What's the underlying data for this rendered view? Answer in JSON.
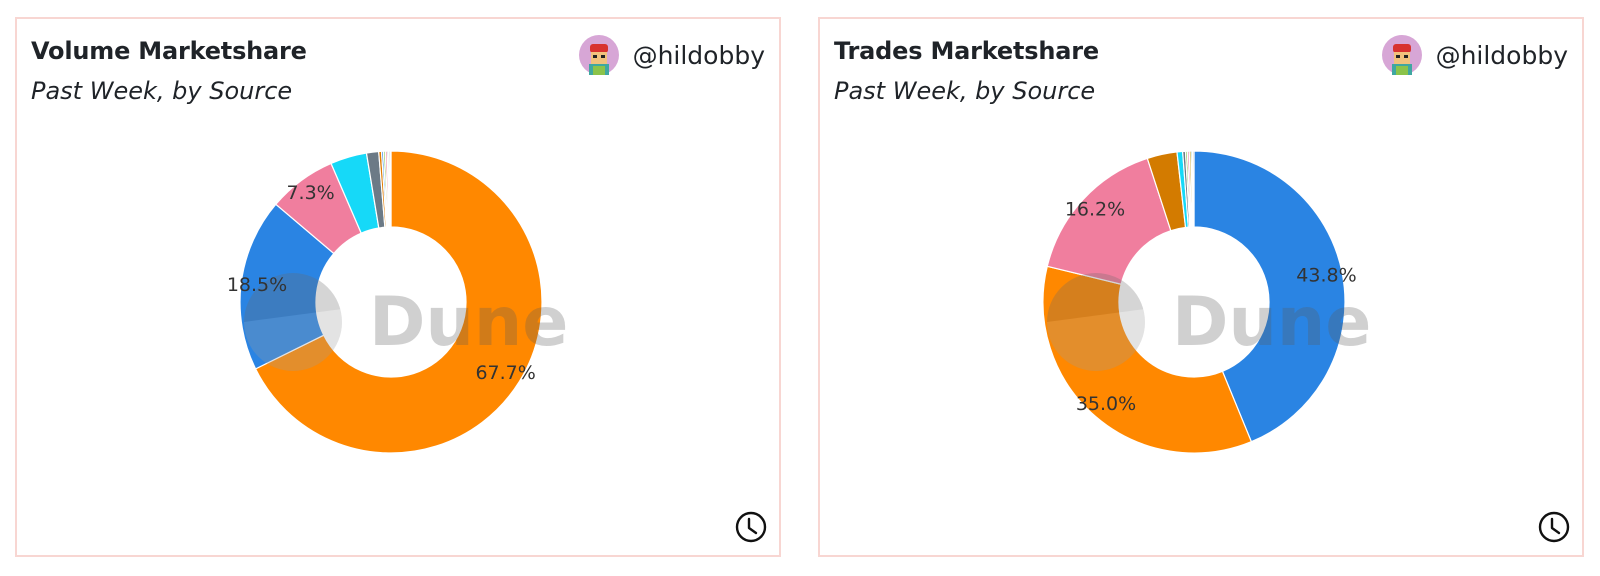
{
  "charts": [
    {
      "title": "Volume Marketshare",
      "subtitle": "Past Week, by Source",
      "author": "@hildobby",
      "watermark": "Dune",
      "icons": [
        "avatar-icon",
        "clock-icon"
      ]
    },
    {
      "title": "Trades Marketshare",
      "subtitle": "Past Week, by Source",
      "author": "@hildobby",
      "watermark": "Dune",
      "icons": [
        "avatar-icon",
        "clock-icon"
      ]
    }
  ],
  "chart_data": [
    {
      "type": "pie",
      "donut": true,
      "title": "Volume Marketshare",
      "subtitle": "Past Week, by Source",
      "slices": [
        {
          "value": 67.7,
          "label": "67.7%",
          "color": "#ff8800"
        },
        {
          "value": 18.5,
          "label": "18.5%",
          "color": "#2a84e3"
        },
        {
          "value": 7.3,
          "label": "7.3%",
          "color": "#f07e9e"
        },
        {
          "value": 3.9,
          "label": "",
          "color": "#16d9f8"
        },
        {
          "value": 1.3,
          "label": "",
          "color": "#6c7a86"
        },
        {
          "value": 0.3,
          "label": "",
          "color": "#e07b00"
        },
        {
          "value": 0.2,
          "label": "",
          "color": "#2a84e3"
        },
        {
          "value": 0.2,
          "label": "",
          "color": "#8bc34a"
        },
        {
          "value": 0.2,
          "label": "",
          "color": "#f07e9e"
        },
        {
          "value": 0.15,
          "label": "",
          "color": "#3fa7a1"
        },
        {
          "value": 0.15,
          "label": "",
          "color": "#9e9e9e"
        },
        {
          "value": 0.1,
          "label": "",
          "color": "#c9a227"
        }
      ]
    },
    {
      "type": "pie",
      "donut": true,
      "title": "Trades Marketshare",
      "subtitle": "Past Week, by Source",
      "slices": [
        {
          "value": 43.8,
          "label": "43.8%",
          "color": "#2a84e3"
        },
        {
          "value": 35.0,
          "label": "35.0%",
          "color": "#ff8800"
        },
        {
          "value": 16.2,
          "label": "16.2%",
          "color": "#f07e9e"
        },
        {
          "value": 3.2,
          "label": "",
          "color": "#d37b00"
        },
        {
          "value": 0.6,
          "label": "",
          "color": "#16d9f8"
        },
        {
          "value": 0.3,
          "label": "",
          "color": "#6c7a86"
        },
        {
          "value": 0.2,
          "label": "",
          "color": "#8bc34a"
        },
        {
          "value": 0.2,
          "label": "",
          "color": "#f07e9e"
        },
        {
          "value": 0.2,
          "label": "",
          "color": "#c9a227"
        },
        {
          "value": 0.15,
          "label": "",
          "color": "#3fa7a1"
        },
        {
          "value": 0.15,
          "label": "",
          "color": "#9e9e9e"
        }
      ]
    }
  ]
}
